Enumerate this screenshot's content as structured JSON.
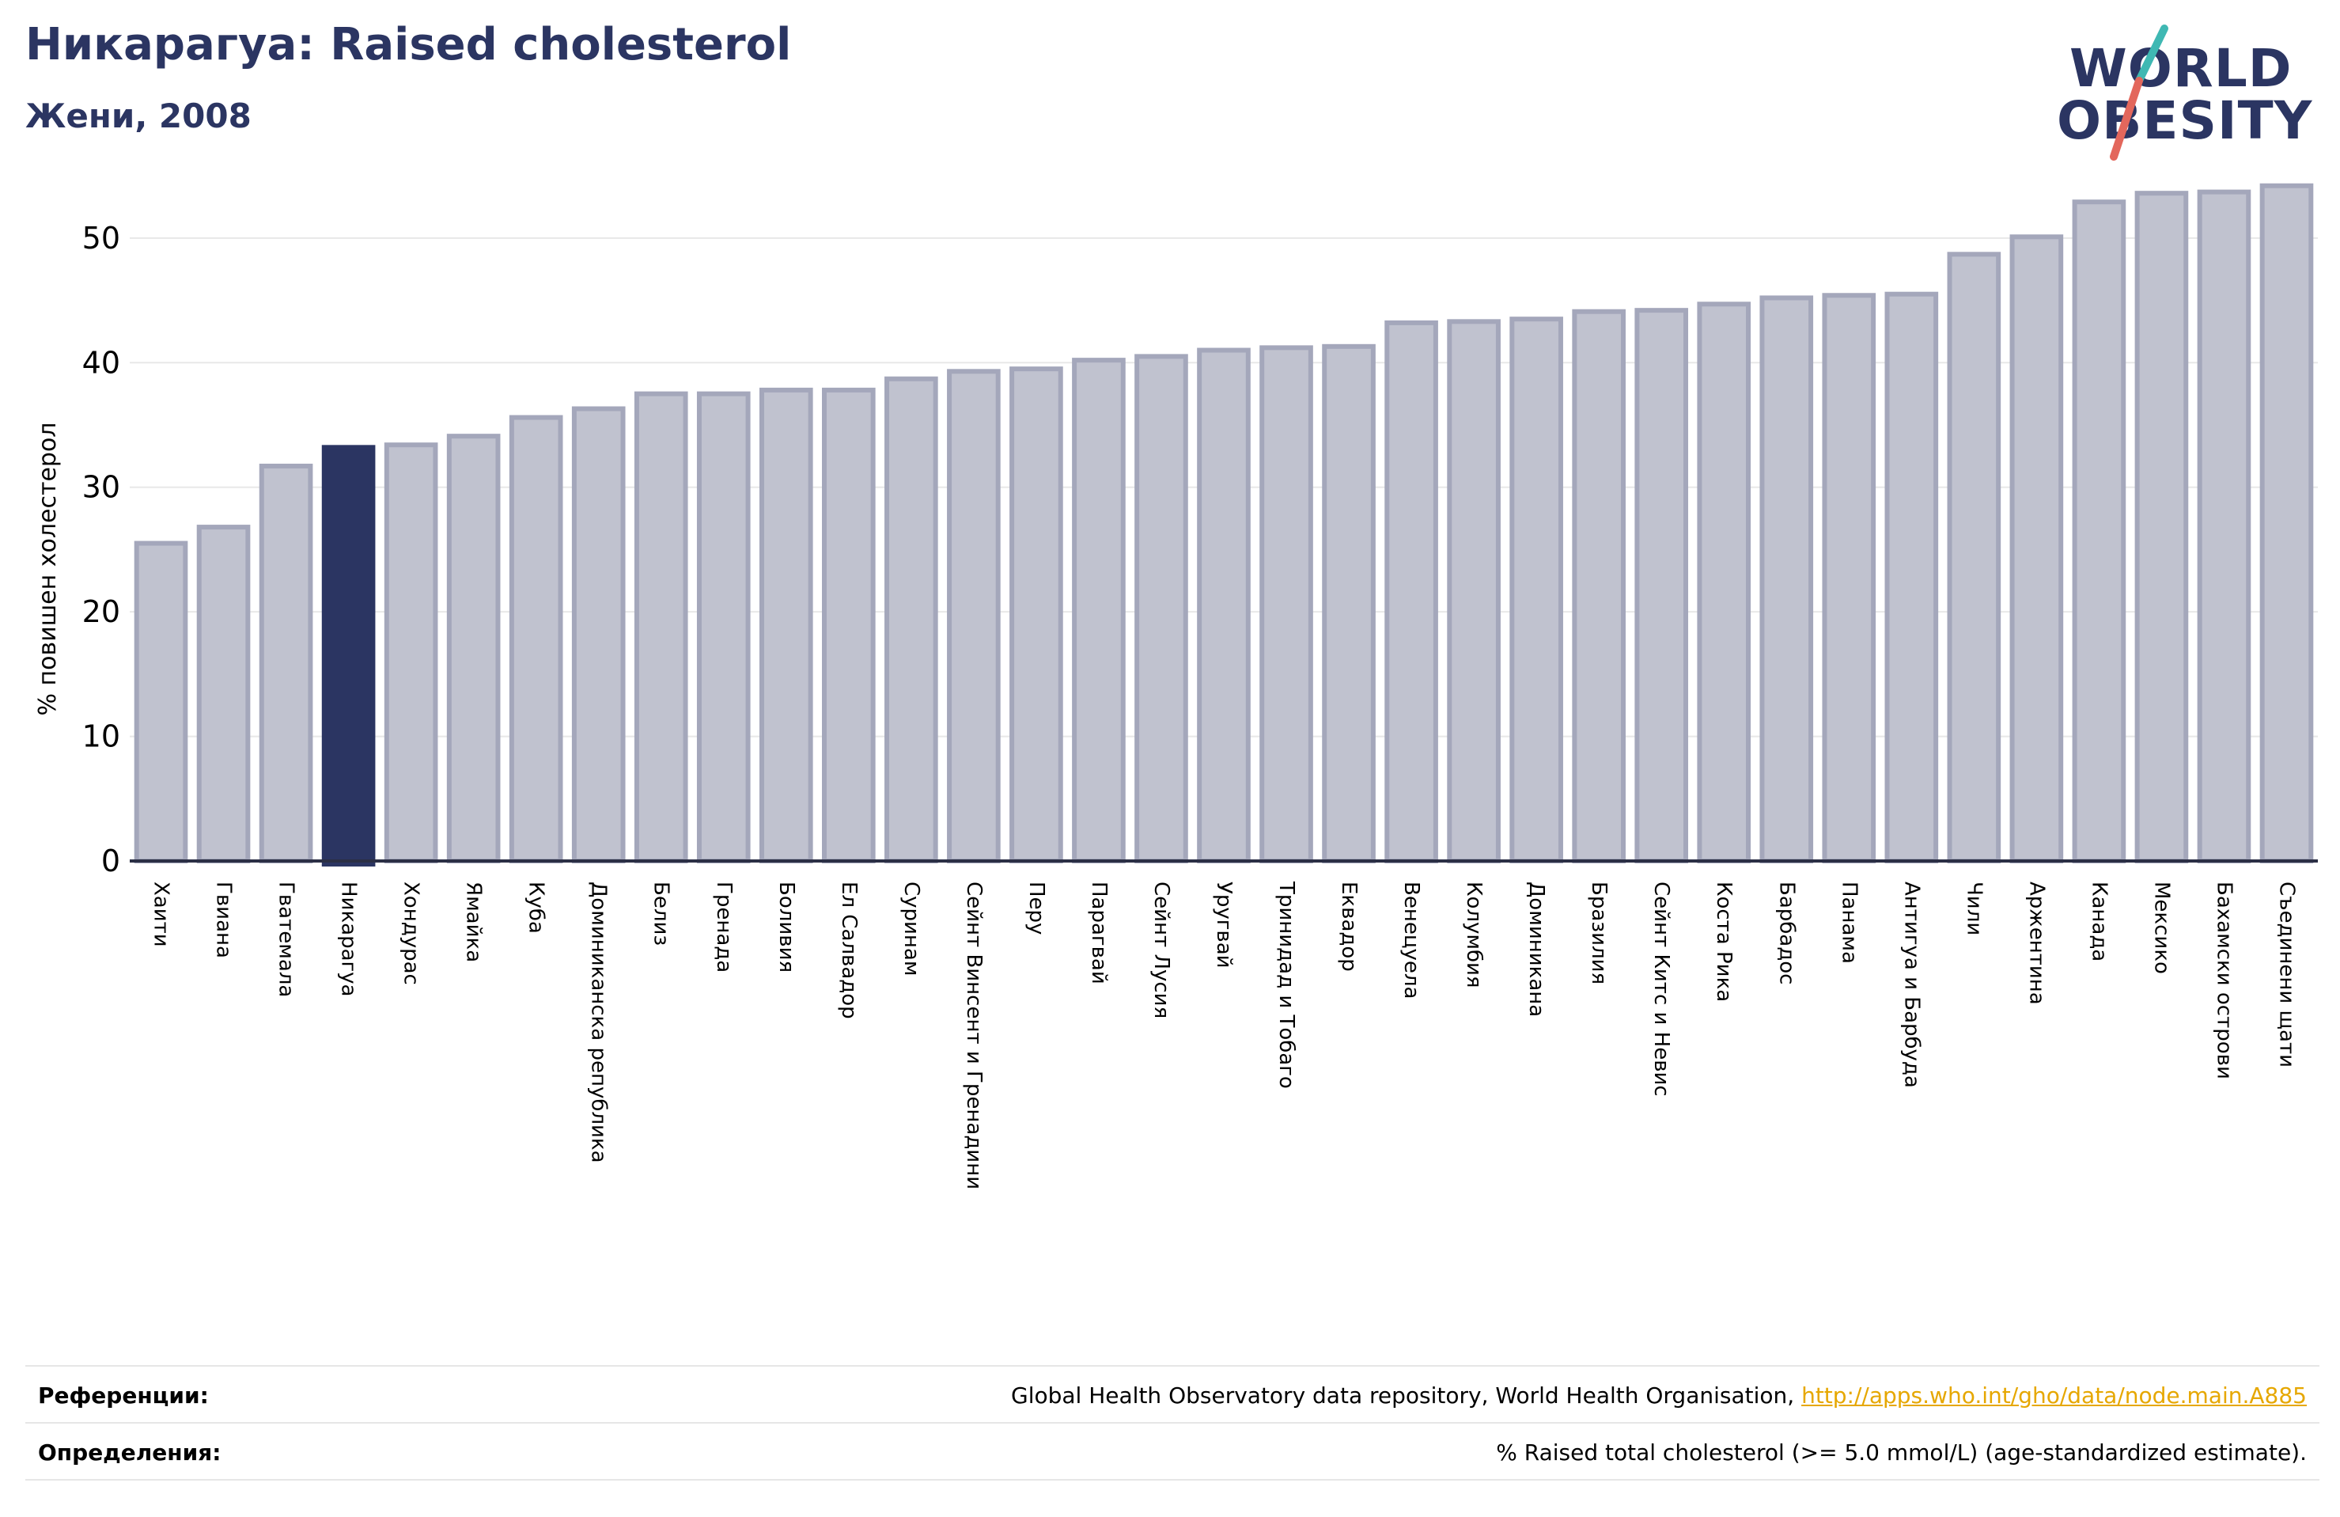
{
  "header": {
    "title": "Никарагуа: Raised cholesterol",
    "subtitle": "Жени, 2008"
  },
  "logo": {
    "line1": "WORLD",
    "line2": "OBESITY"
  },
  "colors": {
    "bar": "#c0c2cf",
    "bar_stroke": "#a4a7bb",
    "highlight": "#2b3562",
    "title": "#2b3562",
    "link": "#e6a700",
    "logo_teal": "#3fb8b3",
    "logo_coral": "#e3675c"
  },
  "chart_data": {
    "type": "bar",
    "ylabel": "% повишен холестерол",
    "ylim": [
      0,
      54.5
    ],
    "yticks": [
      0,
      10,
      20,
      30,
      40,
      50
    ],
    "grid": true,
    "highlight": "Никарагуа",
    "categories": [
      "Хаити",
      "Гвиана",
      "Гватемала",
      "Никарагуа",
      "Хондурас",
      "Ямайка",
      "Куба",
      "Доминиканска република",
      "Белиз",
      "Гренада",
      "Боливия",
      "Ел Салвадор",
      "Суринам",
      "Сейнт Винсент и Гренадини",
      "Перу",
      "Парагвай",
      "Сейнт Лусия",
      "Уругвай",
      "Тринидад и Тобаго",
      "Еквадор",
      "Венецуела",
      "Колумбия",
      "Доминикана",
      "Бразилия",
      "Сейнт Китс и Невис",
      "Коста Рика",
      "Барбадос",
      "Панама",
      "Антигуа и Барбуда",
      "Чили",
      "Аржентина",
      "Канада",
      "Мексико",
      "Бахамски острови",
      "Съединени щати"
    ],
    "values": [
      25.5,
      26.8,
      31.7,
      33.2,
      33.4,
      34.1,
      35.6,
      36.3,
      37.5,
      37.5,
      37.8,
      37.8,
      38.7,
      39.3,
      39.5,
      40.2,
      40.5,
      41.0,
      41.2,
      41.3,
      43.2,
      43.3,
      43.5,
      44.1,
      44.2,
      44.7,
      45.2,
      45.4,
      45.5,
      48.7,
      50.1,
      52.9,
      53.6,
      53.7,
      54.2
    ]
  },
  "footer": {
    "references_label": "Референции:",
    "references_text": "Global Health Observatory data repository, World Health Organisation, ",
    "references_link": "http://apps.who.int/gho/data/node.main.A885",
    "definitions_label": "Определения:",
    "definitions_text": "% Raised total cholesterol (>= 5.0 mmol/L) (age-standardized estimate)."
  }
}
